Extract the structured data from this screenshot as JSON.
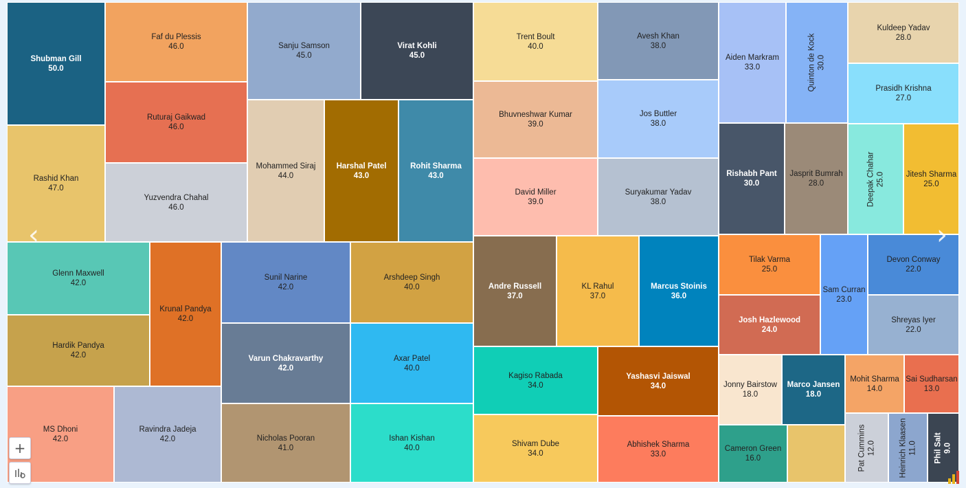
{
  "chart_data": {
    "type": "treemap",
    "title": "",
    "items": [
      {
        "name": "Shubman Gill",
        "value": "50.0",
        "color": "#1b6283",
        "dark": true
      },
      {
        "name": "Rashid Khan",
        "value": "47.0",
        "color": "#e8c46b"
      },
      {
        "name": "Faf du Plessis",
        "value": "46.0",
        "color": "#f2a35f"
      },
      {
        "name": "Ruturaj Gaikwad",
        "value": "46.0",
        "color": "#e67052"
      },
      {
        "name": "Yuzvendra Chahal",
        "value": "46.0",
        "color": "#ccd0d8"
      },
      {
        "name": "Sanju Samson",
        "value": "45.0",
        "color": "#92aacd"
      },
      {
        "name": "Virat Kohli",
        "value": "45.0",
        "color": "#3c4756",
        "dark": true
      },
      {
        "name": "Mohammed Siraj",
        "value": "44.0",
        "color": "#e1cdb2"
      },
      {
        "name": "Harshal Patel",
        "value": "43.0",
        "color": "#a26c01",
        "dark": true
      },
      {
        "name": "Rohit Sharma",
        "value": "43.0",
        "color": "#3f8aa9",
        "dark": true
      },
      {
        "name": "Glenn Maxwell",
        "value": "42.0",
        "color": "#58c7b5"
      },
      {
        "name": "Hardik Pandya",
        "value": "42.0",
        "color": "#c6a24c"
      },
      {
        "name": "Krunal Pandya",
        "value": "42.0",
        "color": "#df7126"
      },
      {
        "name": "MS Dhoni",
        "value": "42.0",
        "color": "#f89f84"
      },
      {
        "name": "Ravindra Jadeja",
        "value": "42.0",
        "color": "#adb9d3"
      },
      {
        "name": "Sunil Narine",
        "value": "42.0",
        "color": "#6288c5"
      },
      {
        "name": "Varun Chakravarthy",
        "value": "42.0",
        "color": "#687c95",
        "dark": true
      },
      {
        "name": "Nicholas Pooran",
        "value": "41.0",
        "color": "#b19571"
      },
      {
        "name": "Arshdeep Singh",
        "value": "40.0",
        "color": "#d2a243"
      },
      {
        "name": "Axar Patel",
        "value": "40.0",
        "color": "#2fb9f1"
      },
      {
        "name": "Ishan Kishan",
        "value": "40.0",
        "color": "#2cddca"
      },
      {
        "name": "Trent Boult",
        "value": "40.0",
        "color": "#f6dc96"
      },
      {
        "name": "Bhuvneshwar Kumar",
        "value": "39.0",
        "color": "#ecb995"
      },
      {
        "name": "David Miller",
        "value": "39.0",
        "color": "#febdae"
      },
      {
        "name": "Avesh Khan",
        "value": "38.0",
        "color": "#8298b6"
      },
      {
        "name": "Jos Buttler",
        "value": "38.0",
        "color": "#a8cbfa"
      },
      {
        "name": "Suryakumar Yadav",
        "value": "38.0",
        "color": "#b5c1d1"
      },
      {
        "name": "Andre Russell",
        "value": "37.0",
        "color": "#876d4f",
        "dark": true
      },
      {
        "name": "KL Rahul",
        "value": "37.0",
        "color": "#f5bb4b"
      },
      {
        "name": "Marcus Stoinis",
        "value": "36.0",
        "color": "#0083bd",
        "dark": true
      },
      {
        "name": "Kagiso Rabada",
        "value": "34.0",
        "color": "#10ceb6"
      },
      {
        "name": "Yashasvi Jaiswal",
        "value": "34.0",
        "color": "#b35504",
        "dark": true
      },
      {
        "name": "Shivam Dube",
        "value": "34.0",
        "color": "#f7c95c"
      },
      {
        "name": "Abhishek Sharma",
        "value": "33.0",
        "color": "#fd7c5d"
      },
      {
        "name": "Aiden Markram",
        "value": "33.0",
        "color": "#a7c1f6"
      },
      {
        "name": "Quinton de Kock",
        "value": "30.0",
        "color": "#85b3f6",
        "rotate": true
      },
      {
        "name": "Kuldeep Yadav",
        "value": "28.0",
        "color": "#e8d4ad"
      },
      {
        "name": "Prasidh Krishna",
        "value": "27.0",
        "color": "#89dffc"
      },
      {
        "name": "Rishabh Pant",
        "value": "30.0",
        "color": "#485669",
        "dark": true
      },
      {
        "name": "Jasprit Bumrah",
        "value": "28.0",
        "color": "#9b8a78"
      },
      {
        "name": "Deepak Chahar",
        "value": "25.0",
        "color": "#88e9de",
        "rotate": true
      },
      {
        "name": "Jitesh Sharma",
        "value": "25.0",
        "color": "#f2bd32"
      },
      {
        "name": "Tilak Varma",
        "value": "25.0",
        "color": "#fa8f3e"
      },
      {
        "name": "Josh Hazlewood",
        "value": "24.0",
        "color": "#d16b53",
        "dark": true
      },
      {
        "name": "Sam Curran",
        "value": "23.0",
        "color": "#65a1f6"
      },
      {
        "name": "Devon Conway",
        "value": "22.0",
        "color": "#498ad8"
      },
      {
        "name": "Shreyas Iyer",
        "value": "22.0",
        "color": "#97b1d1"
      },
      {
        "name": "Jonny Bairstow",
        "value": "18.0",
        "color": "#f9e6cf"
      },
      {
        "name": "Marco Jansen",
        "value": "18.0",
        "color": "#1d6786",
        "dark": true
      },
      {
        "name": "Mohit Sharma",
        "value": "14.0",
        "color": "#f4a466"
      },
      {
        "name": "Sai Sudharsan",
        "value": "13.0",
        "color": "#e96f4f"
      },
      {
        "name": "Cameron Green",
        "value": "16.0",
        "color": "#2ea08b"
      },
      {
        "name": "",
        "value": "",
        "color": "#e8c46b"
      },
      {
        "name": "Pat Cummins",
        "value": "12.0",
        "color": "#ccd0d9",
        "rotate": true
      },
      {
        "name": "Heinrich Klaasen",
        "value": "11.0",
        "color": "#8ca6ce",
        "rotate": true
      },
      {
        "name": "Phil Salt",
        "value": "9.0",
        "color": "#3b4552",
        "dark": true,
        "rotate": true
      }
    ]
  },
  "controls": {
    "prev_glyph": "‹",
    "next_glyph": "›",
    "zoom_in_glyph": "+"
  }
}
